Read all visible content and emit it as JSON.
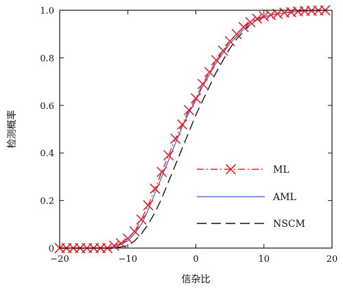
{
  "chart_data": {
    "type": "line",
    "title": "",
    "xlabel": "信杂比",
    "ylabel": "检测概率",
    "xlim": [
      -20,
      20
    ],
    "ylim": [
      0,
      1
    ],
    "xticks": [
      -20,
      -10,
      0,
      10,
      20
    ],
    "yticks": [
      0,
      0.2,
      0.4,
      0.6,
      0.8,
      1.0
    ],
    "xtick_labels": [
      "−20",
      "−10",
      "0",
      "10",
      "20"
    ],
    "ytick_labels": [
      "0",
      "0.2",
      "0.4",
      "0.6",
      "0.8",
      "1.0"
    ],
    "grid": false,
    "legend_position": "lower-right",
    "series": [
      {
        "name": "ML",
        "color": "#e8202a",
        "line_style": "dash-dot",
        "marker": "x",
        "x": [
          -20,
          -19,
          -18,
          -17,
          -16,
          -15,
          -14,
          -13,
          -12,
          -11,
          -10,
          -9,
          -8,
          -7,
          -6,
          -5,
          -4,
          -3,
          -2,
          -1,
          0,
          1,
          2,
          3,
          4,
          5,
          6,
          7,
          8,
          9,
          10,
          11,
          12,
          13,
          14,
          15,
          16,
          17,
          18,
          19
        ],
        "y": [
          0,
          0,
          0,
          0,
          0,
          0,
          0,
          0,
          0.01,
          0.02,
          0.04,
          0.07,
          0.12,
          0.18,
          0.25,
          0.32,
          0.39,
          0.46,
          0.52,
          0.58,
          0.63,
          0.69,
          0.74,
          0.79,
          0.83,
          0.87,
          0.9,
          0.93,
          0.95,
          0.965,
          0.975,
          0.98,
          0.985,
          0.99,
          0.992,
          0.995,
          0.997,
          0.998,
          0.999,
          1.0
        ]
      },
      {
        "name": "AML",
        "color": "#2f5fd8",
        "line_style": "solid",
        "marker": "none",
        "x": [
          -20,
          -19,
          -18,
          -17,
          -16,
          -15,
          -14,
          -13,
          -12,
          -11,
          -10,
          -9,
          -8,
          -7,
          -6,
          -5,
          -4,
          -3,
          -2,
          -1,
          0,
          1,
          2,
          3,
          4,
          5,
          6,
          7,
          8,
          9,
          10,
          11,
          12,
          13,
          14,
          15,
          16,
          17,
          18,
          19
        ],
        "y": [
          0,
          0,
          0,
          0,
          0,
          0,
          0,
          0,
          0.005,
          0.015,
          0.03,
          0.06,
          0.1,
          0.16,
          0.23,
          0.3,
          0.37,
          0.44,
          0.51,
          0.57,
          0.62,
          0.68,
          0.73,
          0.78,
          0.82,
          0.86,
          0.89,
          0.92,
          0.94,
          0.96,
          0.97,
          0.98,
          0.985,
          0.99,
          0.992,
          0.995,
          0.997,
          0.998,
          0.999,
          1.0
        ]
      },
      {
        "name": "NSCM",
        "color": "#111111",
        "line_style": "dashed",
        "marker": "none",
        "x": [
          -20,
          -19,
          -18,
          -17,
          -16,
          -15,
          -14,
          -13,
          -12,
          -11,
          -10,
          -9,
          -8,
          -7,
          -6,
          -5,
          -4,
          -3,
          -2,
          -1,
          0,
          1,
          2,
          3,
          4,
          5,
          6,
          7,
          8,
          9,
          10,
          11,
          12,
          13,
          14,
          15,
          16,
          17,
          18,
          19
        ],
        "y": [
          0,
          0,
          0,
          0,
          0,
          0,
          0,
          0,
          0,
          0.005,
          0.01,
          0.03,
          0.06,
          0.1,
          0.15,
          0.21,
          0.28,
          0.35,
          0.42,
          0.49,
          0.56,
          0.62,
          0.68,
          0.74,
          0.79,
          0.84,
          0.88,
          0.91,
          0.94,
          0.96,
          0.97,
          0.98,
          0.985,
          0.99,
          0.992,
          0.995,
          0.997,
          0.998,
          0.999,
          1.0
        ]
      }
    ]
  }
}
